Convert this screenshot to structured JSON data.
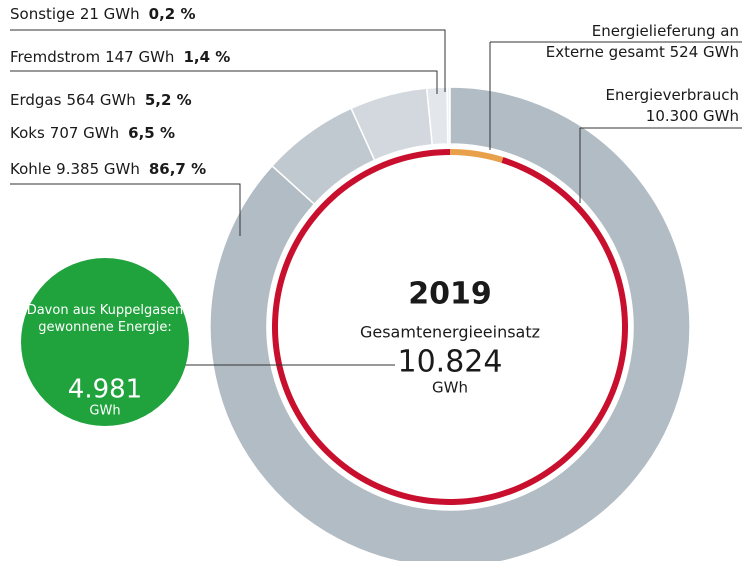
{
  "chart_data": {
    "type": "donut",
    "title": "2019",
    "subtitle": "Gesamtenergieeinsatz",
    "total": 10824,
    "total_label": "10.824",
    "total_unit": "GWh",
    "rings": [
      {
        "labels": [
          "Sonstige",
          "Fremdstrom",
          "Erdgas",
          "Koks",
          "Kohle"
        ],
        "values": [
          21,
          147,
          564,
          707,
          9385
        ],
        "value_labels": [
          "21 GWh",
          "147 GWh",
          "564 GWh",
          "707 GWh",
          "9.385 GWh"
        ],
        "percents": [
          0.2,
          1.4,
          5.2,
          6.5,
          86.7
        ],
        "percent_labels": [
          "0,2 %",
          "1,4 %",
          "5,2 %",
          "6,5 %",
          "86,7 %"
        ],
        "colors": [
          "#eef0f2",
          "#e3e7eb",
          "#d2d8dd",
          "#c1c9d0",
          "#b1bcc5"
        ]
      },
      {
        "labels": [
          "Energielieferung an Externe gesamt",
          "Energieverbrauch"
        ],
        "values": [
          524,
          10300
        ],
        "value_labels": [
          "524 GWh",
          "10.300 GWh"
        ],
        "colors": [
          "#e9a04b",
          "#c8102e"
        ]
      }
    ],
    "callout": {
      "text": "Davon aus Kuppelgasen gewonnene Energie:",
      "value": 4981,
      "value_label": "4.981",
      "unit": "GWh",
      "color": "#20a33d"
    }
  }
}
